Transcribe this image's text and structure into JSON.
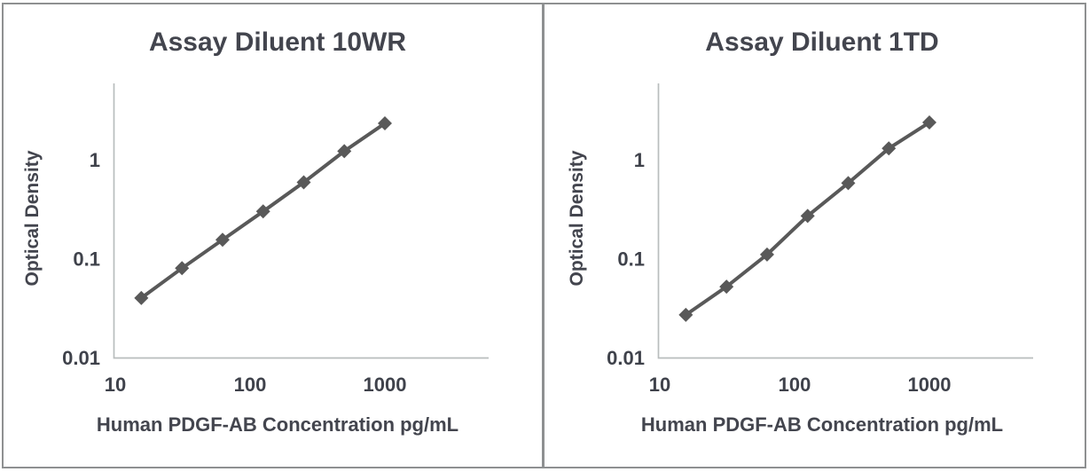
{
  "figure": {
    "background_color": "#ffffff",
    "border_color": "#8e9091",
    "panel_count": 2
  },
  "chart_data": [
    {
      "type": "line",
      "title": "Assay Diluent 10WR",
      "xlabel": "Human PDGF-AB Concentration pg/mL",
      "ylabel": "Optical Density",
      "xscale": "log",
      "yscale": "log",
      "grid": false,
      "legend": "none",
      "xlim": [
        10,
        5600
      ],
      "ylim": [
        0.01,
        5.8
      ],
      "x_ticks": [
        {
          "v": 10,
          "label": "10"
        },
        {
          "v": 100,
          "label": "100"
        },
        {
          "v": 1000,
          "label": "1000"
        }
      ],
      "y_ticks": [
        {
          "v": 1,
          "label": "1"
        },
        {
          "v": 0.1,
          "label": "0.1"
        },
        {
          "v": 0.01,
          "label": "0.01"
        }
      ],
      "x": [
        15.6,
        31.25,
        62.5,
        125,
        250,
        500,
        1000
      ],
      "y": [
        0.04,
        0.08,
        0.155,
        0.3,
        0.59,
        1.22,
        2.33
      ],
      "marker": "diamond",
      "series_color": "#595959",
      "axis_color": "#b9bdbd",
      "text_color": "#43454e"
    },
    {
      "type": "line",
      "title": "Assay Diluent 1TD",
      "xlabel": "Human PDGF-AB Concentration pg/mL",
      "ylabel": "Optical Density",
      "xscale": "log",
      "yscale": "log",
      "grid": false,
      "legend": "none",
      "xlim": [
        10,
        5600
      ],
      "ylim": [
        0.01,
        5.8
      ],
      "x_ticks": [
        {
          "v": 10,
          "label": "10"
        },
        {
          "v": 100,
          "label": "100"
        },
        {
          "v": 1000,
          "label": "1000"
        }
      ],
      "y_ticks": [
        {
          "v": 1,
          "label": "1"
        },
        {
          "v": 0.1,
          "label": "0.1"
        },
        {
          "v": 0.01,
          "label": "0.01"
        }
      ],
      "x": [
        15.6,
        31.25,
        62.5,
        125,
        250,
        500,
        1000
      ],
      "y": [
        0.027,
        0.052,
        0.11,
        0.27,
        0.58,
        1.3,
        2.38
      ],
      "marker": "diamond",
      "series_color": "#595959",
      "axis_color": "#b9bdbd",
      "text_color": "#43454e"
    }
  ]
}
